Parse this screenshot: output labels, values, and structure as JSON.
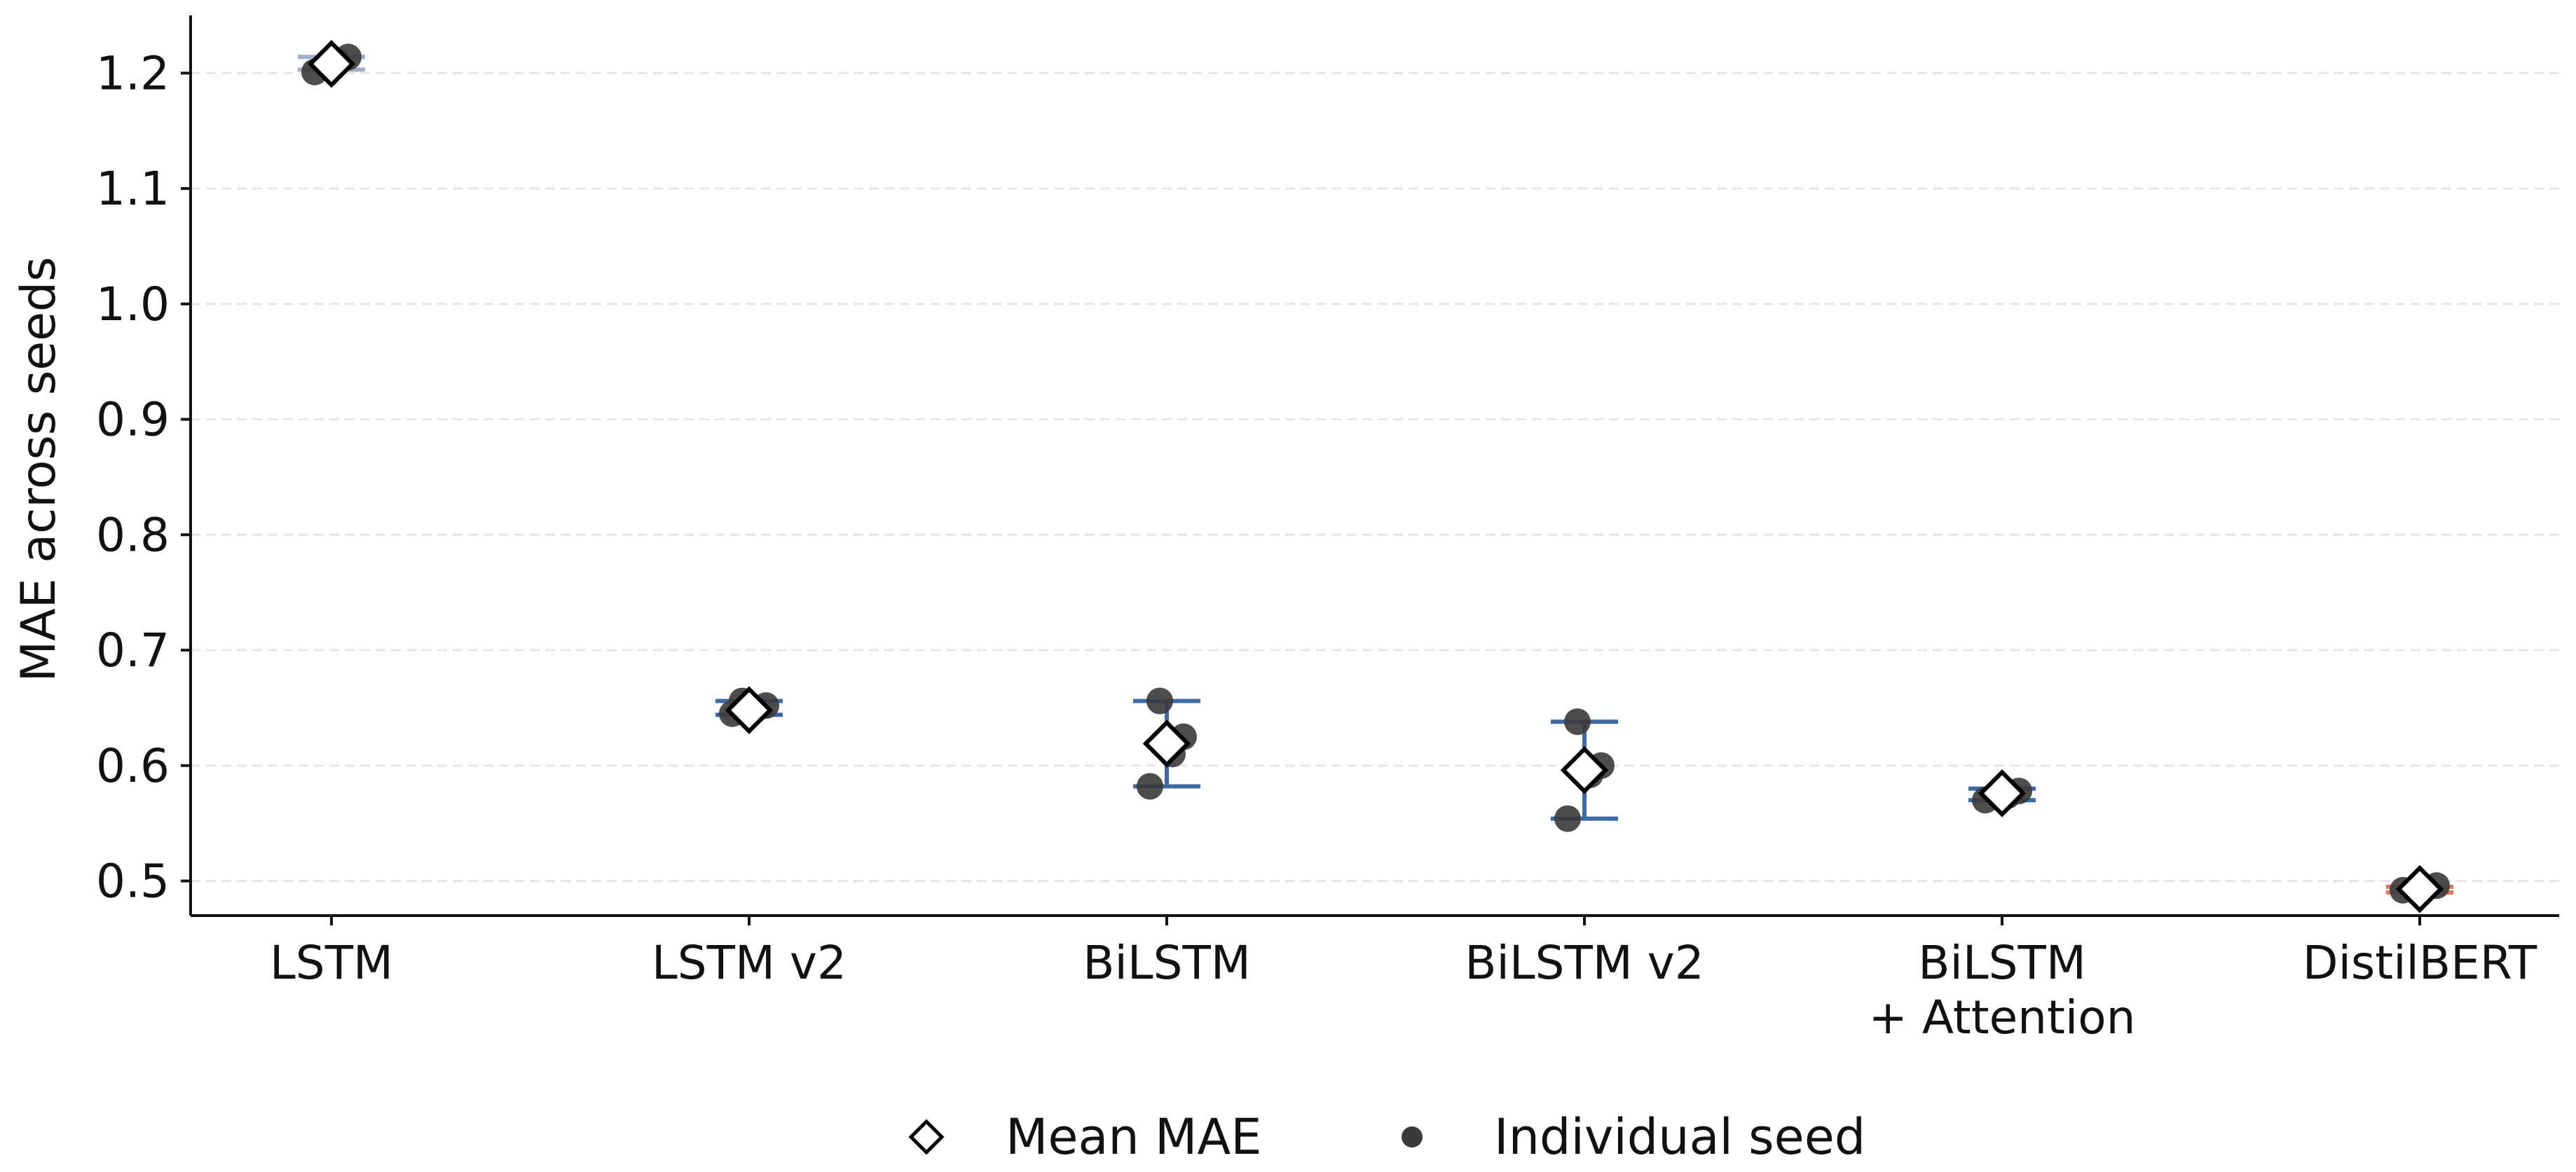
{
  "chart_data": {
    "type": "scatter",
    "title": "",
    "xlabel": "",
    "ylabel": "MAE across seeds",
    "ylim": [
      0.47,
      1.25
    ],
    "yticks": [
      0.5,
      0.6,
      0.7,
      0.8,
      0.9,
      1.0,
      1.1,
      1.2
    ],
    "ytick_labels": [
      "0.5",
      "0.6",
      "0.7",
      "0.8",
      "0.9",
      "1.0",
      "1.1",
      "1.2"
    ],
    "grid": "horizontal dashed",
    "categories": [
      {
        "label_lines": [
          "LSTM"
        ],
        "mean": 1.208,
        "err": [
          1.203,
          1.214
        ],
        "seeds": [
          1.201,
          1.21,
          1.214
        ],
        "err_color": "#9bb0cc"
      },
      {
        "label_lines": [
          "LSTM v2"
        ],
        "mean": 0.648,
        "err": [
          0.644,
          0.656
        ],
        "seeds": [
          0.645,
          0.648,
          0.652,
          0.656
        ],
        "err_color": "#3d6aa3"
      },
      {
        "label_lines": [
          "BiLSTM"
        ],
        "mean": 0.619,
        "err": [
          0.582,
          0.656
        ],
        "seeds": [
          0.582,
          0.61,
          0.625,
          0.656
        ],
        "err_color": "#3d6aa3"
      },
      {
        "label_lines": [
          "BiLSTM v2"
        ],
        "mean": 0.596,
        "err": [
          0.554,
          0.638
        ],
        "seeds": [
          0.554,
          0.592,
          0.6,
          0.638
        ],
        "err_color": "#3d6aa3"
      },
      {
        "label_lines": [
          "BiLSTM",
          "+ Attention"
        ],
        "mean": 0.576,
        "err": [
          0.57,
          0.58
        ],
        "seeds": [
          0.57,
          0.574,
          0.578
        ],
        "err_color": "#3d6aa3"
      },
      {
        "label_lines": [
          "DistilBERT"
        ],
        "mean": 0.493,
        "err": [
          0.49,
          0.495
        ],
        "seeds": [
          0.492,
          0.494,
          0.496
        ],
        "err_color": "#e0795a"
      }
    ],
    "legend": {
      "placement": "bottom-center",
      "items": [
        {
          "label": "Mean MAE",
          "marker": "diamond-open"
        },
        {
          "label": "Individual seed",
          "marker": "dot-filled"
        }
      ]
    },
    "colors": {
      "seed": "#3a3a3a",
      "grid": "#e6e6e6",
      "axis": "#111111",
      "mean_fill": "#ffffff",
      "mean_edge": "#000000"
    }
  }
}
